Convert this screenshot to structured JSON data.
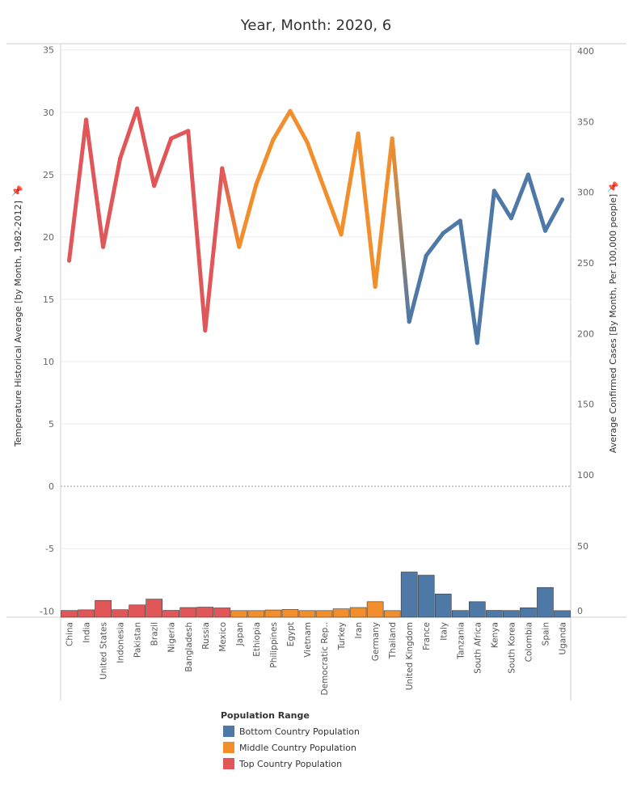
{
  "chart_data": {
    "type": "line",
    "title": "Year, Month: 2020, 6",
    "left_axis": {
      "label": "Temperature Historical Average  [by Month, 1982-2012]",
      "ylim": [
        -10.5,
        35.5
      ],
      "ticks": [
        35,
        30,
        25,
        20,
        15,
        10,
        5,
        0,
        -5,
        -10
      ]
    },
    "right_axis": {
      "label": "Average Confirmed Cases [By Month, Per 100,000 people]",
      "ticks": [
        400,
        350,
        300,
        250,
        200,
        150,
        100,
        50,
        0
      ],
      "scale": "piecewise",
      "breaks": [
        [
          0,
          0
        ],
        [
          50,
          50
        ],
        [
          100,
          100
        ],
        [
          400,
          400
        ]
      ]
    },
    "categories": [
      "China",
      "India",
      "United States",
      "Indonesia",
      "Pakistan",
      "Brazil",
      "Nigeria",
      "Bangladesh",
      "Russia",
      "Mexico",
      "Japan",
      "Ethiopia",
      "Philippines",
      "Egypt",
      "Vietnam",
      "Democratic Rep..",
      "Turkey",
      "Iran",
      "Germany",
      "Thailand",
      "United Kingdom",
      "France",
      "Italy",
      "Tanzania",
      "South Africa",
      "Kenya",
      "South Korea",
      "Colombia",
      "Spain",
      "Uganda"
    ],
    "group": [
      "Top",
      "Top",
      "Top",
      "Top",
      "Top",
      "Top",
      "Top",
      "Top",
      "Top",
      "Top",
      "Middle",
      "Middle",
      "Middle",
      "Middle",
      "Middle",
      "Middle",
      "Middle",
      "Middle",
      "Middle",
      "Middle",
      "Bottom",
      "Bottom",
      "Bottom",
      "Bottom",
      "Bottom",
      "Bottom",
      "Bottom",
      "Bottom",
      "Bottom",
      "Bottom"
    ],
    "temperature": [
      18.1,
      29.4,
      19.2,
      26.3,
      30.3,
      24.1,
      27.9,
      28.5,
      12.5,
      25.5,
      19.2,
      24.2,
      27.8,
      30.1,
      27.6,
      23.9,
      20.2,
      28.3,
      16.0,
      27.9,
      13.2,
      18.5,
      20.3,
      21.3,
      11.5,
      23.7,
      21.5,
      25.0,
      20.5,
      23.0
    ],
    "avg_confirmed_cases": [
      0.2,
      0.7,
      8.0,
      0.8,
      4.5,
      9.0,
      0.3,
      2.5,
      2.8,
      2.2,
      0.1,
      0.1,
      0.6,
      1.0,
      0.1,
      0.1,
      1.5,
      2.5,
      7.0,
      0.1,
      30.0,
      27.5,
      13.0,
      0.2,
      7.0,
      0.3,
      0.2,
      2.3,
      18.0,
      0.1
    ],
    "legend": {
      "title": "Population Range",
      "position": "bottom",
      "items": [
        {
          "key": "Bottom",
          "label": "Bottom Country Population",
          "color": "#4e79a7"
        },
        {
          "key": "Middle",
          "label": "Middle Country Population",
          "color": "#f28e2b"
        },
        {
          "key": "Top",
          "label": "Top Country Population",
          "color": "#e15759"
        }
      ]
    },
    "grid": true,
    "pin_icon": "pin-icon"
  }
}
